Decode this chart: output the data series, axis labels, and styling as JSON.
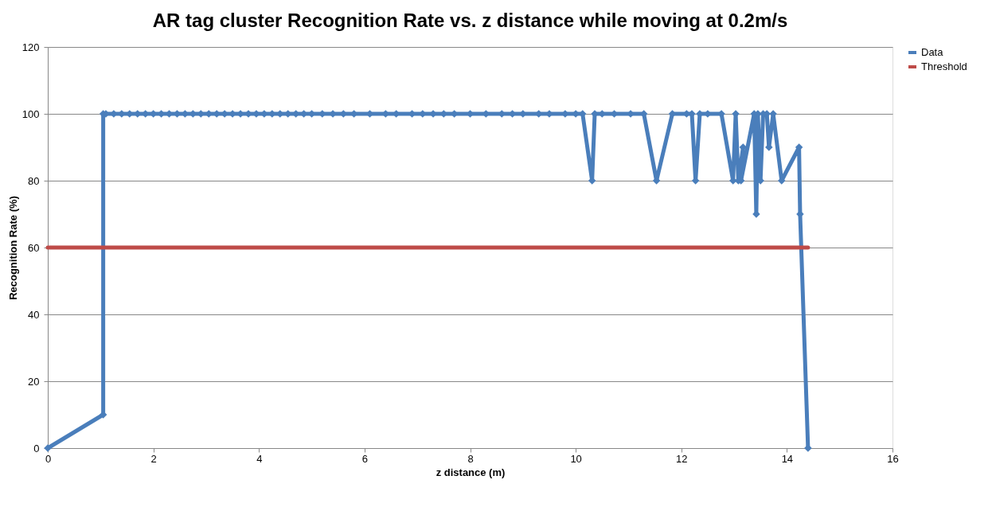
{
  "chart_data": {
    "type": "line",
    "title": "AR tag cluster Recognition Rate vs. z distance while moving at 0.2m/s",
    "xlabel": "z distance (m)",
    "ylabel": "Recognition Rate (%)",
    "xlim": [
      0,
      16
    ],
    "xticks": [
      0,
      2,
      4,
      6,
      8,
      10,
      12,
      14,
      16
    ],
    "ylim": [
      0,
      120
    ],
    "yticks": [
      0,
      20,
      40,
      60,
      80,
      100,
      120
    ],
    "grid": "y",
    "legend": "right",
    "series": [
      {
        "name": "Data",
        "color": "#4a7ebb",
        "marker": "diamond",
        "x": [
          0,
          1.05,
          1.05,
          1.1,
          1.25,
          1.4,
          1.55,
          1.7,
          1.85,
          2.0,
          2.15,
          2.3,
          2.45,
          2.6,
          2.75,
          2.9,
          3.05,
          3.2,
          3.35,
          3.5,
          3.65,
          3.8,
          3.95,
          4.1,
          4.25,
          4.4,
          4.55,
          4.7,
          4.85,
          5.0,
          5.2,
          5.4,
          5.6,
          5.8,
          6.1,
          6.4,
          6.6,
          6.9,
          7.1,
          7.3,
          7.5,
          7.7,
          8.0,
          8.3,
          8.6,
          8.8,
          9.0,
          9.3,
          9.5,
          9.8,
          10.0,
          10.13,
          10.31,
          10.36,
          10.5,
          10.73,
          11.04,
          11.29,
          11.53,
          11.83,
          12.1,
          12.2,
          12.27,
          12.35,
          12.5,
          12.76,
          12.98,
          13.03,
          13.08,
          13.17,
          13.13,
          13.38,
          13.42,
          13.45,
          13.5,
          13.55,
          13.62,
          13.66,
          13.74,
          13.9,
          14.23,
          14.25,
          14.4
        ],
        "values": [
          0,
          10,
          100,
          100,
          100,
          100,
          100,
          100,
          100,
          100,
          100,
          100,
          100,
          100,
          100,
          100,
          100,
          100,
          100,
          100,
          100,
          100,
          100,
          100,
          100,
          100,
          100,
          100,
          100,
          100,
          100,
          100,
          100,
          100,
          100,
          100,
          100,
          100,
          100,
          100,
          100,
          100,
          100,
          100,
          100,
          100,
          100,
          100,
          100,
          100,
          100,
          100,
          80,
          100,
          100,
          100,
          100,
          100,
          80,
          100,
          100,
          100,
          80,
          100,
          100,
          100,
          80,
          100,
          80,
          90,
          80,
          100,
          70,
          100,
          80,
          100,
          100,
          90,
          100,
          80,
          90,
          70,
          0
        ]
      },
      {
        "name": "Threshold",
        "color": "#be4b48",
        "marker": "none",
        "x": [
          0,
          14.4
        ],
        "values": [
          60,
          60
        ]
      }
    ]
  }
}
